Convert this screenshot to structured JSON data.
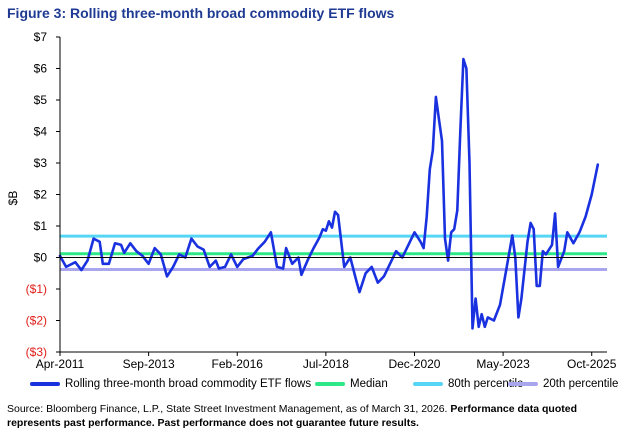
{
  "title": "Figure 3: Rolling three-month broad commodity ETF flows",
  "footer": {
    "source": "Source: Bloomberg Finance, L.P., State Street Investment Management, as of March 31, 2026.",
    "disclaimer": "Performance data quoted represents past performance. Past performance does not guarantee future results."
  },
  "chart_data": {
    "type": "line",
    "ylabel": "$B",
    "ylim": [
      -3,
      7
    ],
    "yticks": [
      {
        "value": 7,
        "label": "$7"
      },
      {
        "value": 6,
        "label": "$6"
      },
      {
        "value": 5,
        "label": "$5"
      },
      {
        "value": 4,
        "label": "$4"
      },
      {
        "value": 3,
        "label": "$3"
      },
      {
        "value": 2,
        "label": "$2"
      },
      {
        "value": 1,
        "label": "$1"
      },
      {
        "value": 0,
        "label": "$0"
      },
      {
        "value": -1,
        "label": "($1)"
      },
      {
        "value": -2,
        "label": "($2)"
      },
      {
        "value": -3,
        "label": "($3)"
      }
    ],
    "negative_label_color": "#e0201b",
    "xlim": [
      "2011-04",
      "2026-03"
    ],
    "xticks": [
      {
        "date": "2011-04",
        "label": "Apr-2011"
      },
      {
        "date": "2013-09",
        "label": "Sep-2013"
      },
      {
        "date": "2016-02",
        "label": "Feb-2016"
      },
      {
        "date": "2018-07",
        "label": "Jul-2018"
      },
      {
        "date": "2020-12",
        "label": "Dec-2020"
      },
      {
        "date": "2023-05",
        "label": "May-2023"
      },
      {
        "date": "2025-10",
        "label": "Oct-2025"
      }
    ],
    "grid": false,
    "legend_position": "bottom",
    "series": [
      {
        "name": "Rolling three-month broad commodity ETF flows",
        "color": "#1a31e0",
        "points": [
          [
            "2011-04",
            0.05
          ],
          [
            "2011-06",
            -0.3
          ],
          [
            "2011-09",
            -0.15
          ],
          [
            "2011-11",
            -0.4
          ],
          [
            "2012-01",
            -0.1
          ],
          [
            "2012-03",
            0.6
          ],
          [
            "2012-05",
            0.5
          ],
          [
            "2012-06",
            -0.2
          ],
          [
            "2012-08",
            -0.2
          ],
          [
            "2012-10",
            0.45
          ],
          [
            "2012-12",
            0.4
          ],
          [
            "2013-01",
            0.15
          ],
          [
            "2013-03",
            0.45
          ],
          [
            "2013-05",
            0.2
          ],
          [
            "2013-07",
            0.05
          ],
          [
            "2013-09",
            -0.2
          ],
          [
            "2013-11",
            0.3
          ],
          [
            "2014-01",
            0.1
          ],
          [
            "2014-03",
            -0.6
          ],
          [
            "2014-05",
            -0.3
          ],
          [
            "2014-07",
            0.1
          ],
          [
            "2014-09",
            0.0
          ],
          [
            "2014-11",
            0.6
          ],
          [
            "2015-01",
            0.35
          ],
          [
            "2015-03",
            0.25
          ],
          [
            "2015-05",
            -0.3
          ],
          [
            "2015-07",
            -0.1
          ],
          [
            "2015-08",
            -0.35
          ],
          [
            "2015-10",
            -0.3
          ],
          [
            "2015-12",
            0.1
          ],
          [
            "2016-02",
            -0.3
          ],
          [
            "2016-04",
            -0.05
          ],
          [
            "2016-07",
            0.05
          ],
          [
            "2016-09",
            0.3
          ],
          [
            "2016-11",
            0.5
          ],
          [
            "2017-01",
            0.8
          ],
          [
            "2017-03",
            -0.3
          ],
          [
            "2017-05",
            -0.35
          ],
          [
            "2017-06",
            0.3
          ],
          [
            "2017-08",
            -0.2
          ],
          [
            "2017-10",
            0.0
          ],
          [
            "2017-11",
            -0.55
          ],
          [
            "2018-01",
            -0.1
          ],
          [
            "2018-03",
            0.3
          ],
          [
            "2018-05",
            0.65
          ],
          [
            "2018-06",
            0.9
          ],
          [
            "2018-07",
            0.85
          ],
          [
            "2018-08",
            1.15
          ],
          [
            "2018-09",
            0.95
          ],
          [
            "2018-10",
            1.45
          ],
          [
            "2018-11",
            1.35
          ],
          [
            "2019-01",
            -0.3
          ],
          [
            "2019-03",
            0.0
          ],
          [
            "2019-05",
            -0.75
          ],
          [
            "2019-06",
            -1.1
          ],
          [
            "2019-08",
            -0.5
          ],
          [
            "2019-10",
            -0.3
          ],
          [
            "2019-12",
            -0.8
          ],
          [
            "2020-02",
            -0.6
          ],
          [
            "2020-04",
            -0.2
          ],
          [
            "2020-06",
            0.2
          ],
          [
            "2020-08",
            0.0
          ],
          [
            "2020-10",
            0.4
          ],
          [
            "2020-12",
            0.8
          ],
          [
            "2021-02",
            0.5
          ],
          [
            "2021-03",
            0.3
          ],
          [
            "2021-04",
            1.3
          ],
          [
            "2021-05",
            2.8
          ],
          [
            "2021-06",
            3.4
          ],
          [
            "2021-07",
            5.1
          ],
          [
            "2021-08",
            4.4
          ],
          [
            "2021-09",
            3.7
          ],
          [
            "2021-10",
            0.6
          ],
          [
            "2021-11",
            -0.1
          ],
          [
            "2021-12",
            0.8
          ],
          [
            "2022-01",
            0.9
          ],
          [
            "2022-02",
            1.5
          ],
          [
            "2022-03",
            4.0
          ],
          [
            "2022-04",
            6.3
          ],
          [
            "2022-05",
            6.0
          ],
          [
            "2022-06",
            3.0
          ],
          [
            "2022-07",
            -2.25
          ],
          [
            "2022-08",
            -1.3
          ],
          [
            "2022-09",
            -2.2
          ],
          [
            "2022-10",
            -1.8
          ],
          [
            "2022-11",
            -2.2
          ],
          [
            "2022-12",
            -1.9
          ],
          [
            "2023-02",
            -2.0
          ],
          [
            "2023-04",
            -1.5
          ],
          [
            "2023-06",
            -0.4
          ],
          [
            "2023-08",
            0.7
          ],
          [
            "2023-09",
            0.0
          ],
          [
            "2023-10",
            -1.9
          ],
          [
            "2023-11",
            -1.3
          ],
          [
            "2024-01",
            0.5
          ],
          [
            "2024-02",
            1.1
          ],
          [
            "2024-03",
            0.9
          ],
          [
            "2024-04",
            -0.9
          ],
          [
            "2024-05",
            -0.9
          ],
          [
            "2024-06",
            0.2
          ],
          [
            "2024-07",
            0.1
          ],
          [
            "2024-09",
            0.4
          ],
          [
            "2024-10",
            1.4
          ],
          [
            "2024-11",
            -0.3
          ],
          [
            "2025-01",
            0.2
          ],
          [
            "2025-02",
            0.8
          ],
          [
            "2025-04",
            0.45
          ],
          [
            "2025-06",
            0.8
          ],
          [
            "2025-08",
            1.3
          ],
          [
            "2025-10",
            2.0
          ],
          [
            "2025-12",
            2.95
          ]
        ]
      },
      {
        "name": "Median",
        "color": "#2ee887",
        "constant": 0.12
      },
      {
        "name": "80th percentile",
        "color": "#56d6f5",
        "constant": 0.68
      },
      {
        "name": "20th percentile",
        "color": "#a9a5ef",
        "constant": -0.38
      }
    ]
  }
}
